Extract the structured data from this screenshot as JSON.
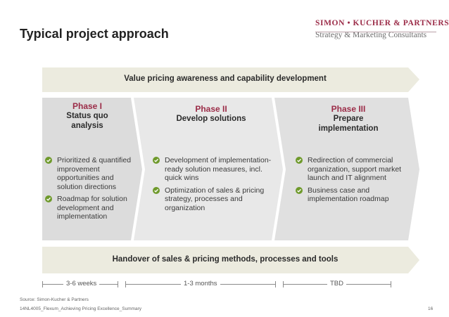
{
  "header": {
    "title": "Typical project approach",
    "logo_name": "SIMON • KUCHER & PARTNERS",
    "logo_tagline": "Strategy & Marketing Consultants"
  },
  "top_banner": "Value pricing awareness and capability development",
  "bottom_banner": "Handover of sales & pricing methods, processes and tools",
  "phases": [
    {
      "label": "Phase I",
      "name_lines": [
        "Status quo",
        "analysis"
      ],
      "bullets": [
        "Prioritized & quantified improvement opportunities and solution directions",
        "Roadmap for solution development and implementation"
      ]
    },
    {
      "label": "Phase II",
      "name_lines": [
        "Develop solutions"
      ],
      "bullets": [
        "Development of implementation-ready solution measures, incl. quick wins",
        "Optimization of sales & pricing strategy, processes and organization"
      ]
    },
    {
      "label": "Phase III",
      "name_lines": [
        "Prepare",
        "implementation"
      ],
      "bullets": [
        "Redirection of commercial organization, support market launch and IT alignment",
        "Business case and implementation roadmap"
      ]
    }
  ],
  "timeline": [
    "3-6 weeks",
    "1-3 months",
    "TBD"
  ],
  "footer": {
    "source": "Source: Simon-Kucher & Partners",
    "doc_id": "14NL4005_Flexum_Achieving Pricing Excellence_Summary",
    "page": "16"
  },
  "colors": {
    "accent": "#9b2c48",
    "banner": "#ecebdf",
    "chevron_1": "#dcdcdc",
    "chevron_2": "#e8e8e8",
    "chevron_3": "#e0e0e0",
    "check": "#6f9a2c"
  }
}
